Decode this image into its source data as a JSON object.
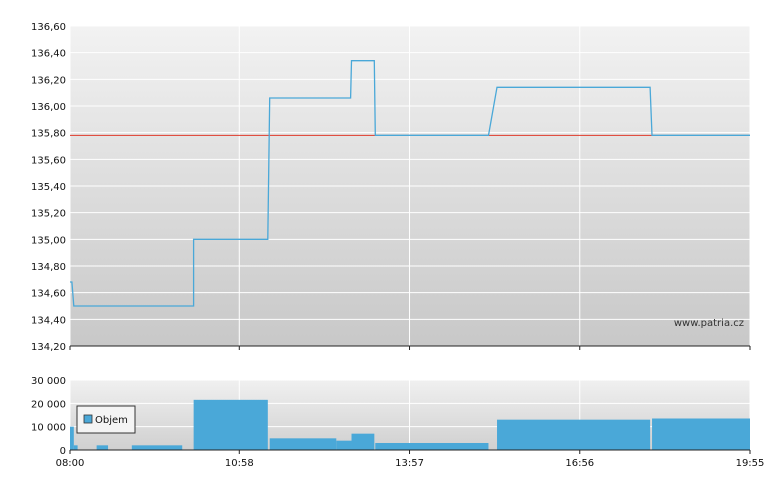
{
  "watermark": "www.patria.cz",
  "chart_data": [
    {
      "type": "line",
      "name": "price",
      "x_ticks": [
        "08:00",
        "10:58",
        "13:57",
        "16:56",
        "19:55"
      ],
      "ylim": [
        134.2,
        136.6
      ],
      "y_ticks": [
        "134,20",
        "134,40",
        "134,60",
        "134,80",
        "135,00",
        "135,20",
        "135,40",
        "135,60",
        "135,80",
        "136,00",
        "136,20",
        "136,40",
        "136,60"
      ],
      "grid": true,
      "reference_line": 135.78,
      "reference_color": "#e03a2a",
      "line_color": "#4aa8d8",
      "series": [
        {
          "values": [
            [
              "08:00",
              134.68
            ],
            [
              "08:02",
              134.68
            ],
            [
              "08:04",
              134.5
            ],
            [
              "10:10",
              134.5
            ],
            [
              "10:10",
              135.0
            ],
            [
              "11:28",
              135.0
            ],
            [
              "11:30",
              136.06
            ],
            [
              "12:55",
              136.06
            ],
            [
              "12:56",
              136.34
            ],
            [
              "13:20",
              136.34
            ],
            [
              "13:21",
              135.78
            ],
            [
              "15:20",
              135.78
            ],
            [
              "15:29",
              136.14
            ],
            [
              "18:10",
              136.14
            ],
            [
              "18:12",
              135.78
            ],
            [
              "19:55",
              135.78
            ]
          ]
        }
      ]
    },
    {
      "type": "bar",
      "name": "volume",
      "legend": "Objem",
      "x_ticks": [
        "08:00",
        "10:58",
        "13:57",
        "16:56",
        "19:55"
      ],
      "ylim": [
        0,
        30000
      ],
      "y_ticks": [
        "0",
        "10 000",
        "20 000",
        "30 000"
      ],
      "bar_color": "#4aa8d8",
      "segments": [
        {
          "from": "08:00",
          "to": "08:04",
          "value": 10000
        },
        {
          "from": "08:04",
          "to": "08:08",
          "value": 2000
        },
        {
          "from": "08:28",
          "to": "08:40",
          "value": 2000
        },
        {
          "from": "09:05",
          "to": "09:58",
          "value": 2000
        },
        {
          "from": "10:10",
          "to": "11:28",
          "value": 21500
        },
        {
          "from": "11:30",
          "to": "12:40",
          "value": 5000
        },
        {
          "from": "12:40",
          "to": "12:56",
          "value": 4000
        },
        {
          "from": "12:56",
          "to": "13:20",
          "value": 7000
        },
        {
          "from": "13:21",
          "to": "15:20",
          "value": 3000
        },
        {
          "from": "15:29",
          "to": "18:10",
          "value": 13000
        },
        {
          "from": "18:12",
          "to": "19:55",
          "value": 13500
        }
      ]
    }
  ]
}
